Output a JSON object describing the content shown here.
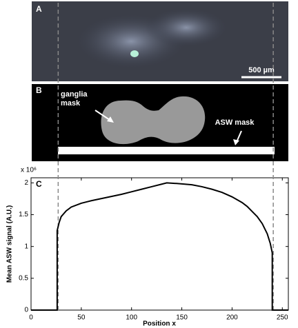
{
  "panel_a": {
    "label": "A",
    "scale_bar": "500 µm"
  },
  "panel_b": {
    "label": "B",
    "ganglia_label": "ganglia\nmask",
    "asw_label": "ASW mask"
  },
  "chart_data": {
    "type": "line",
    "panel_label": "C",
    "y_multiplier": "x 10⁶",
    "x_label": "Position x",
    "y_label": "Mean ASW signal (A.U.)",
    "xlim": [
      0,
      256
    ],
    "xticks": [
      0,
      50,
      100,
      150,
      200,
      250
    ],
    "ylim": [
      0,
      2.08
    ],
    "yticks": [
      0,
      0.5,
      1,
      1.5,
      2
    ],
    "markers_x": [
      27,
      241
    ],
    "series": [
      {
        "name": "Mean ASW signal",
        "color": "#000000",
        "x": [
          0,
          26,
          26,
          28,
          30,
          35,
          40,
          50,
          60,
          75,
          90,
          100,
          110,
          120,
          130,
          135,
          145,
          160,
          170,
          180,
          190,
          200,
          210,
          215,
          220,
          225,
          230,
          235,
          238,
          240,
          240,
          256
        ],
        "values": [
          0,
          0,
          1.25,
          1.38,
          1.47,
          1.56,
          1.62,
          1.68,
          1.72,
          1.77,
          1.82,
          1.86,
          1.9,
          1.94,
          1.98,
          2.0,
          1.99,
          1.97,
          1.94,
          1.9,
          1.85,
          1.78,
          1.69,
          1.63,
          1.55,
          1.47,
          1.36,
          1.2,
          1.05,
          0.9,
          0,
          0
        ]
      }
    ]
  }
}
